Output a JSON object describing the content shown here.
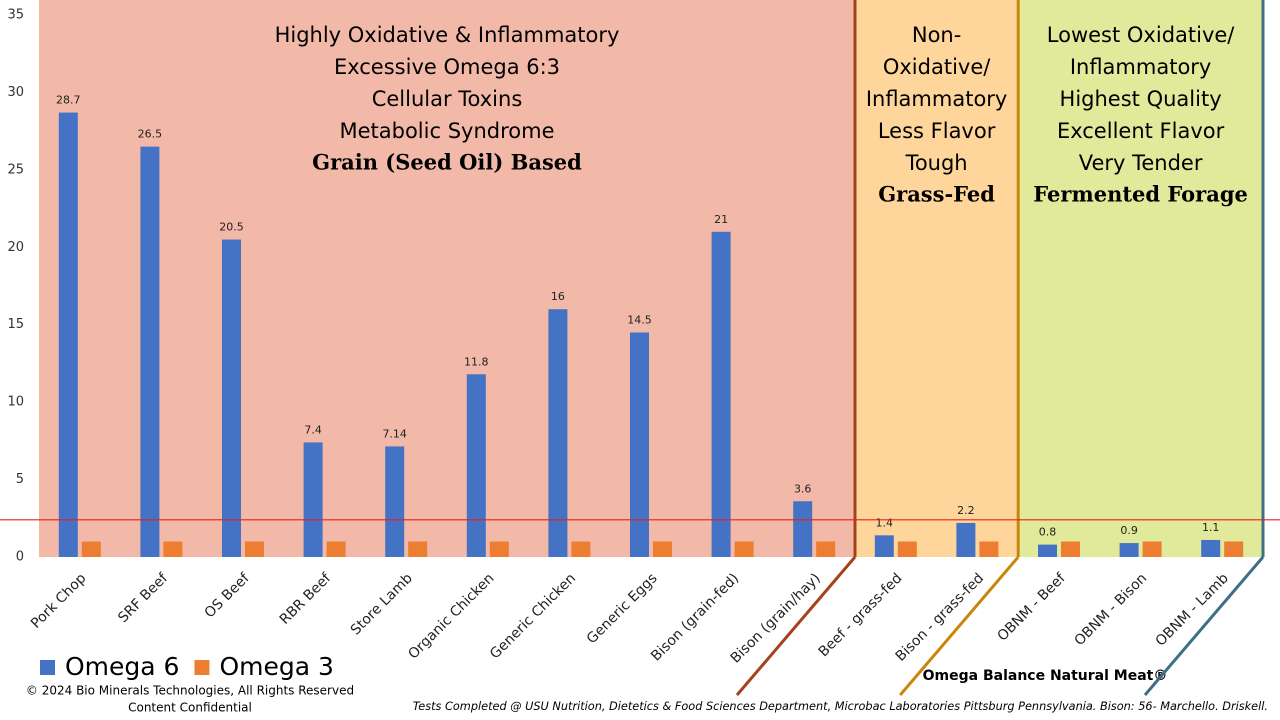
{
  "chart_data": {
    "type": "bar",
    "categories": [
      "Pork Chop",
      "SRF Beef",
      "OS Beef",
      "RBR Beef",
      "Store Lamb",
      "Organic Chicken",
      "Generic Chicken",
      "Generic Eggs",
      "Bison (grain-fed)",
      "Bison (grain/hay)",
      "Beef - grass-fed",
      "Bison - grass-fed",
      "OBNM - Beef",
      "OBNM - Bison",
      "OBNM - Lamb"
    ],
    "series": [
      {
        "name": "Omega 6",
        "color": "#4472c4",
        "values": [
          28.7,
          26.5,
          20.5,
          7.4,
          7.14,
          11.8,
          16,
          14.5,
          21,
          3.6,
          1.4,
          2.2,
          0.8,
          0.9,
          1.1
        ]
      },
      {
        "name": "Omega 3",
        "color": "#ed7d31",
        "values": [
          1,
          1,
          1,
          1,
          1,
          1,
          1,
          1,
          1,
          1,
          1,
          1,
          1,
          1,
          1
        ]
      }
    ],
    "ylim": [
      0,
      35
    ],
    "yticks": [
      0,
      5,
      10,
      15,
      20,
      25,
      30,
      35
    ],
    "grid": false,
    "legend": "bottom-left",
    "reference_line": {
      "value": 2.4,
      "color": "#e8201a"
    },
    "regions": [
      {
        "span": [
          0,
          9
        ],
        "color": "#f3b9a8",
        "border": "#a8401c",
        "lines": [
          "Highly Oxidative & Inflammatory",
          "Excessive Omega 6:3",
          "Cellular Toxins",
          "Metabolic Syndrome"
        ],
        "heading": "Grain (Seed Oil) Based"
      },
      {
        "span": [
          10,
          11
        ],
        "color": "#fed59b",
        "border": "#c8860a",
        "lines": [
          "Non-",
          "Oxidative/",
          "Inflammatory",
          "Less Flavor",
          "Tough"
        ],
        "heading": "Grass-Fed"
      },
      {
        "span": [
          12,
          14
        ],
        "color": "#e1e99b",
        "border": "#3e6f87",
        "lines": [
          "Lowest Oxidative/",
          "Inflammatory",
          "Highest Quality",
          "Excellent Flavor",
          "Very Tender"
        ],
        "heading": "Fermented Forage"
      }
    ],
    "footer": {
      "copyright": [
        "© 2024 Bio Minerals Technologies, All Rights Reserved",
        "Content Confidential"
      ],
      "brand": "Omega Balance Natural Meat®",
      "note": "Tests Completed @ USU Nutrition, Dietetics & Food Sciences Department, Microbac Laboratories Pittsburg Pennsylvania. Bison: 56- Marchello. Driskell."
    }
  }
}
